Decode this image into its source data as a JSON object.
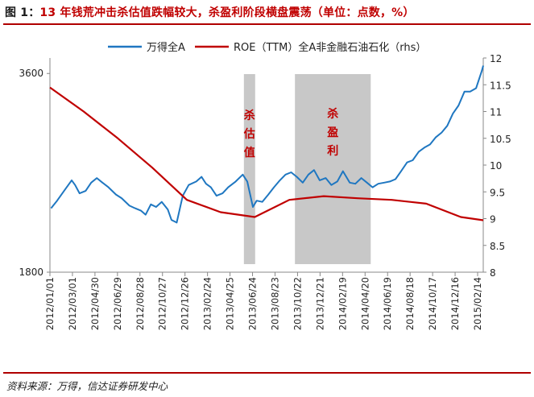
{
  "figure": {
    "label": "图 1：",
    "title": "13 年钱荒冲击杀估值跌幅较大，杀盈利阶段横盘震荡（单位：点数，%）",
    "source": "资料来源：万得，信达证券研发中心"
  },
  "colors": {
    "index": "#1f77c1",
    "roe": "#c00000",
    "shade": "#c8c8c8",
    "rule": "#b00000",
    "annotation": "#c00000"
  },
  "chart_data": {
    "type": "line",
    "legend": [
      "万得全A",
      "ROE（TTM）全A非金融石油石化（rhs）"
    ],
    "legend_position": "top-center",
    "x_tick_labels": [
      "2012/01/01",
      "2012/03/01",
      "2012/04/30",
      "2012/06/29",
      "2012/08/28",
      "2012/10/27",
      "2012/12/26",
      "2013/02/24",
      "2013/04/25",
      "2013/06/24",
      "2013/08/23",
      "2013/10/22",
      "2013/12/21",
      "2014/02/19",
      "2014/04/20",
      "2014/06/19",
      "2014/08/18",
      "2014/10/17",
      "2014/12/16",
      "2015/02/14"
    ],
    "x_range": [
      "2012/01/01",
      "2015/03/01"
    ],
    "y_left": {
      "ticks": [
        1800,
        3600
      ],
      "range": [
        1800,
        3800
      ],
      "scale": "log"
    },
    "y_right": {
      "ticks": [
        8,
        8.5,
        9,
        9.5,
        10,
        10.5,
        11,
        11.5,
        12
      ],
      "range": [
        8,
        12
      ]
    },
    "shaded_periods": [
      {
        "label": "杀估值",
        "start": "2013/06/01",
        "end": "2013/07/01"
      },
      {
        "label": "杀盈利",
        "start": "2013/10/15",
        "end": "2014/05/05"
      }
    ],
    "series": [
      {
        "name": "万得全A",
        "axis": "left",
        "points": [
          [
            "2012/01/04",
            2250
          ],
          [
            "2012/01/20",
            2310
          ],
          [
            "2012/02/10",
            2400
          ],
          [
            "2012/02/28",
            2480
          ],
          [
            "2012/03/08",
            2440
          ],
          [
            "2012/03/20",
            2370
          ],
          [
            "2012/04/05",
            2390
          ],
          [
            "2012/04/20",
            2460
          ],
          [
            "2012/05/05",
            2500
          ],
          [
            "2012/05/20",
            2460
          ],
          [
            "2012/06/05",
            2420
          ],
          [
            "2012/06/25",
            2360
          ],
          [
            "2012/07/10",
            2330
          ],
          [
            "2012/07/31",
            2270
          ],
          [
            "2012/08/15",
            2250
          ],
          [
            "2012/08/31",
            2230
          ],
          [
            "2012/09/12",
            2200
          ],
          [
            "2012/09/26",
            2280
          ],
          [
            "2012/10/10",
            2260
          ],
          [
            "2012/10/25",
            2300
          ],
          [
            "2012/11/10",
            2240
          ],
          [
            "2012/11/20",
            2160
          ],
          [
            "2012/12/04",
            2140
          ],
          [
            "2012/12/20",
            2350
          ],
          [
            "2013/01/05",
            2440
          ],
          [
            "2013/01/25",
            2470
          ],
          [
            "2013/02/08",
            2510
          ],
          [
            "2013/02/20",
            2450
          ],
          [
            "2013/03/05",
            2420
          ],
          [
            "2013/03/20",
            2350
          ],
          [
            "2013/04/05",
            2370
          ],
          [
            "2013/04/20",
            2420
          ],
          [
            "2013/05/10",
            2470
          ],
          [
            "2013/05/29",
            2530
          ],
          [
            "2013/06/10",
            2470
          ],
          [
            "2013/06/25",
            2260
          ],
          [
            "2013/07/05",
            2310
          ],
          [
            "2013/07/20",
            2300
          ],
          [
            "2013/08/05",
            2360
          ],
          [
            "2013/08/20",
            2420
          ],
          [
            "2013/09/05",
            2480
          ],
          [
            "2013/09/20",
            2530
          ],
          [
            "2013/10/05",
            2550
          ],
          [
            "2013/10/20",
            2510
          ],
          [
            "2013/11/05",
            2460
          ],
          [
            "2013/11/20",
            2530
          ],
          [
            "2013/12/05",
            2570
          ],
          [
            "2013/12/20",
            2480
          ],
          [
            "2014/01/05",
            2500
          ],
          [
            "2014/01/20",
            2440
          ],
          [
            "2014/02/05",
            2470
          ],
          [
            "2014/02/20",
            2560
          ],
          [
            "2014/03/10",
            2460
          ],
          [
            "2014/03/25",
            2450
          ],
          [
            "2014/04/10",
            2500
          ],
          [
            "2014/04/25",
            2460
          ],
          [
            "2014/05/10",
            2420
          ],
          [
            "2014/05/25",
            2450
          ],
          [
            "2014/06/10",
            2460
          ],
          [
            "2014/06/25",
            2470
          ],
          [
            "2014/07/10",
            2490
          ],
          [
            "2014/07/25",
            2560
          ],
          [
            "2014/08/10",
            2640
          ],
          [
            "2014/08/25",
            2660
          ],
          [
            "2014/09/10",
            2740
          ],
          [
            "2014/09/25",
            2780
          ],
          [
            "2014/10/10",
            2810
          ],
          [
            "2014/10/25",
            2880
          ],
          [
            "2014/11/10",
            2930
          ],
          [
            "2014/11/25",
            3000
          ],
          [
            "2014/12/10",
            3130
          ],
          [
            "2014/12/25",
            3220
          ],
          [
            "2015/01/10",
            3380
          ],
          [
            "2015/01/25",
            3380
          ],
          [
            "2015/02/10",
            3420
          ],
          [
            "2015/02/25",
            3630
          ],
          [
            "2015/03/01",
            3700
          ]
        ]
      },
      {
        "name": "ROE（TTM）全A非金融石油石化",
        "axis": "right",
        "points": [
          [
            "2012/01/01",
            11.45
          ],
          [
            "2012/03/31",
            11.0
          ],
          [
            "2012/06/30",
            10.5
          ],
          [
            "2012/09/30",
            9.95
          ],
          [
            "2012/12/31",
            9.35
          ],
          [
            "2013/03/31",
            9.12
          ],
          [
            "2013/06/30",
            9.03
          ],
          [
            "2013/09/30",
            9.35
          ],
          [
            "2013/12/31",
            9.42
          ],
          [
            "2014/03/31",
            9.38
          ],
          [
            "2014/06/30",
            9.35
          ],
          [
            "2014/09/30",
            9.28
          ],
          [
            "2014/12/31",
            9.03
          ],
          [
            "2015/03/01",
            8.97
          ]
        ]
      }
    ]
  }
}
